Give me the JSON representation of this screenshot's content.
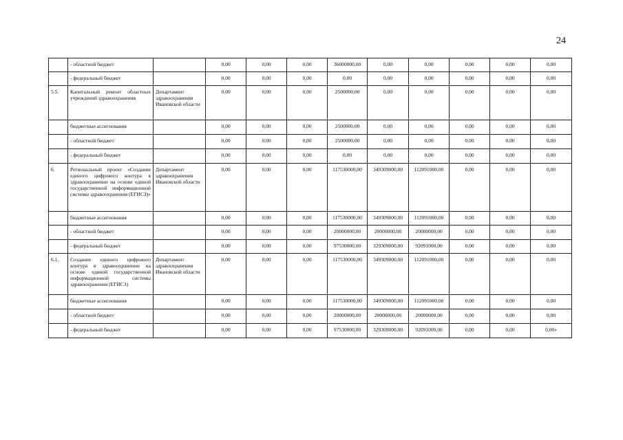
{
  "page_number": "24",
  "rows": [
    {
      "code": "",
      "name": "- областной бюджет",
      "executor": "",
      "values": [
        "0,00",
        "0,00",
        "0,00",
        "36000000,00",
        "0,00",
        "0,00",
        "0,00",
        "0,00",
        "0,00"
      ]
    },
    {
      "code": "",
      "name": "- федеральный бюджет",
      "executor": "",
      "values": [
        "0,00",
        "0,00",
        "0,00",
        "0,00",
        "0,00",
        "0,00",
        "0,00",
        "0,00",
        "0,00"
      ]
    },
    {
      "code": "5.5.",
      "name": "Капитальный ремонт областных учреждений здравоохранения",
      "executor": "Департамент здравоохранения Ивановской области",
      "values": [
        "0,00",
        "0,00",
        "0,00",
        "2500000,00",
        "0,00",
        "0,00",
        "0,00",
        "0,00",
        "0,00"
      ]
    },
    {
      "code": "",
      "name": "бюджетные ассигнования",
      "executor": "",
      "values": [
        "0,00",
        "0,00",
        "0,00",
        "2500000,00",
        "0,00",
        "0,00",
        "0,00",
        "0,00",
        "0,00"
      ]
    },
    {
      "code": "",
      "name": "- областной бюджет",
      "executor": "",
      "values": [
        "0,00",
        "0,00",
        "0,00",
        "2500000,00",
        "0,00",
        "0,00",
        "0,00",
        "0,00",
        "0,00"
      ]
    },
    {
      "code": "",
      "name": "- федеральный бюджет",
      "executor": "",
      "values": [
        "0,00",
        "0,00",
        "0,00",
        "0,00",
        "0,00",
        "0,00",
        "0,00",
        "0,00",
        "0,00"
      ]
    },
    {
      "code": "6.",
      "name": "Региональный проект «Создание единого цифрового контура в здравоохранении на основе единой государственной информационной системы здравоохранения (ЕГИСЗ)»",
      "executor": "Департамент здравоохранения Ивановской области",
      "values": [
        "0,00",
        "0,00",
        "0,00",
        "117530000,00",
        "349309000,00",
        "112091000,00",
        "0,00",
        "0,00",
        "0,00"
      ]
    },
    {
      "code": "",
      "name": "бюджетные ассигнования",
      "executor": "",
      "values": [
        "0,00",
        "0,00",
        "0,00",
        "117530000,00",
        "349309000,00",
        "112091000,00",
        "0,00",
        "0,00",
        "0,00"
      ]
    },
    {
      "code": "",
      "name": "- областной бюджет",
      "executor": "",
      "values": [
        "0,00",
        "0,00",
        "0,00",
        "20000000,00",
        "20000000,00",
        "20000000,00",
        "0,00",
        "0,00",
        "0,00"
      ]
    },
    {
      "code": "",
      "name": "- федеральный бюджет",
      "executor": "",
      "values": [
        "0,00",
        "0,00",
        "0,00",
        "97530000,00",
        "329309000,00",
        "92091000,00",
        "0,00",
        "0,00",
        "0,00"
      ]
    },
    {
      "code": "6.1.",
      "name": "Создание единого цифрового контура в здравоохранении на основе единой государственной информационной системы здравоохранения (ЕГИСЗ)",
      "executor": "Департамент здравоохранения Ивановской области",
      "values": [
        "0,00",
        "0,00",
        "0,00",
        "117530000,00",
        "349309000,00",
        "112091000,00",
        "0,00",
        "0,00",
        "0,00"
      ]
    },
    {
      "code": "",
      "name": "бюджетные ассигнования",
      "executor": "",
      "values": [
        "0,00",
        "0,00",
        "0,00",
        "117530000,00",
        "349309000,00",
        "112091000,00",
        "0,00",
        "0,00",
        "0,00"
      ]
    },
    {
      "code": "",
      "name": "- областной бюджет",
      "executor": "",
      "values": [
        "0,00",
        "0,00",
        "0,00",
        "20000000,00",
        "20000000,00",
        "20000000,00",
        "0,00",
        "0,00",
        "0,00"
      ]
    },
    {
      "code": "",
      "name": "- федеральный бюджет",
      "executor": "",
      "values": [
        "0,00",
        "0,00",
        "0,00",
        "97530000,00",
        "329309000,00",
        "92091000,00",
        "0,00",
        "0,00",
        "0,00»"
      ]
    }
  ]
}
